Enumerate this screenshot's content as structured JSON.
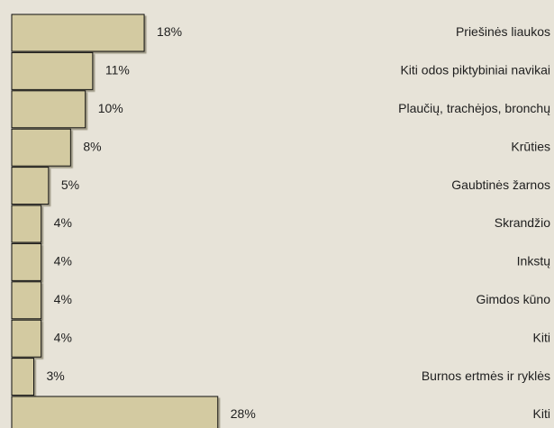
{
  "chart_data": {
    "type": "bar",
    "orientation": "horizontal",
    "categories": [
      "Priešinės liaukos",
      "Kiti odos piktybiniai navikai",
      "Plaučių, trachėjos, bronchų",
      "Krūties",
      "Gaubtinės žarnos",
      "Skrandžio",
      "Inkstų",
      "Gimdos kūno",
      "Kiti",
      "Burnos ertmės ir ryklės",
      "Kiti"
    ],
    "values": [
      18,
      11,
      10,
      8,
      5,
      4,
      4,
      4,
      4,
      3,
      28
    ],
    "value_labels": [
      "18%",
      "11%",
      "10%",
      "8%",
      "5%",
      "4%",
      "4%",
      "4%",
      "4%",
      "3%",
      "28%"
    ],
    "color": "#d3caa1"
  }
}
